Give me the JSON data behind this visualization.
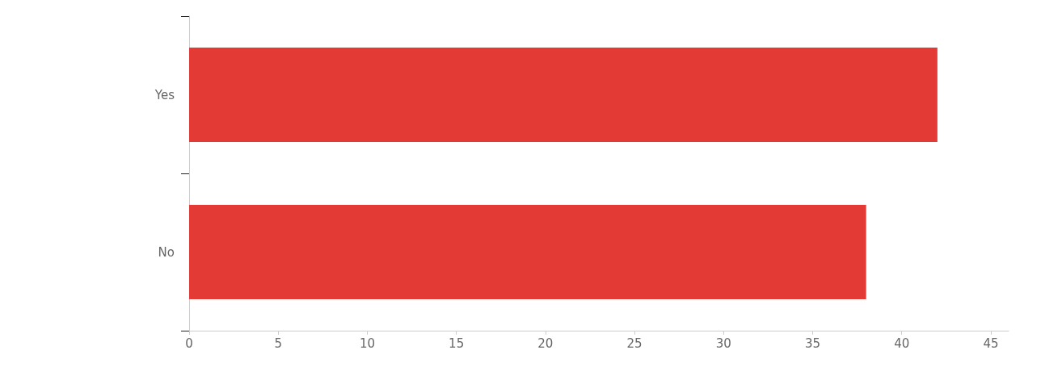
{
  "chart_data": {
    "type": "bar",
    "orientation": "horizontal",
    "categories": [
      "Yes",
      "No"
    ],
    "values": [
      42,
      38
    ],
    "color": "#e33a35",
    "xlim": [
      0,
      46
    ],
    "xticks": [
      0,
      5,
      10,
      15,
      20,
      25,
      30,
      35,
      40,
      45
    ],
    "grid": false
  }
}
